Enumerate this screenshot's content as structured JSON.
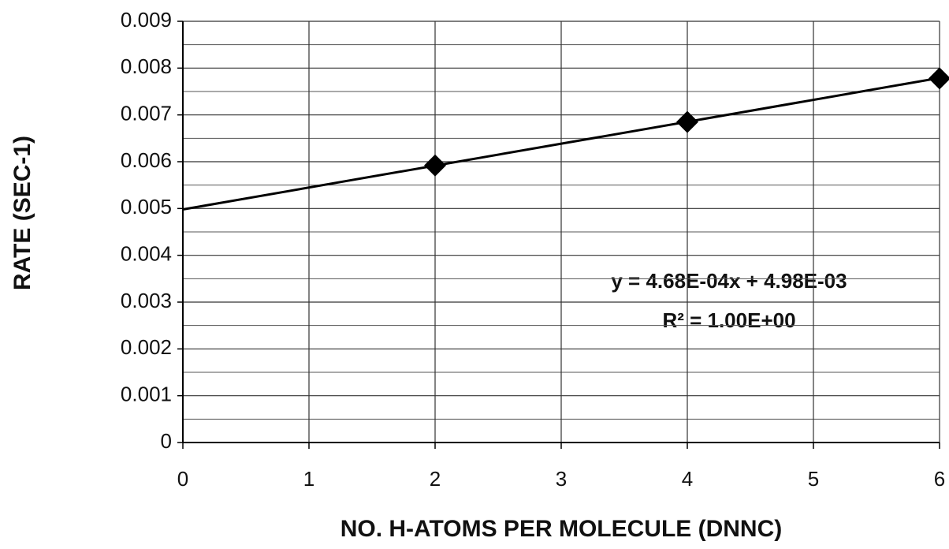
{
  "chart_data": {
    "type": "scatter",
    "xlabel": "NO. H-ATOMS PER MOLECULE (DNNC)",
    "ylabel": "RATE (SEC-1)",
    "annotations": [
      "y = 4.68E-04x + 4.98E-03",
      "R² = 1.00E+00"
    ],
    "x": [
      2,
      4,
      6
    ],
    "series": [
      {
        "color": "#000000",
        "values": [
          0.00592,
          0.00685,
          0.00778
        ]
      }
    ],
    "trendline": {
      "x": [
        0,
        6
      ],
      "values": [
        0.00498,
        0.00779
      ],
      "color": "#000000"
    },
    "xlim": [
      0,
      6
    ],
    "xticks": [
      0,
      1,
      2,
      3,
      4,
      5,
      6
    ],
    "ylim": [
      0,
      0.009
    ],
    "yticks": [
      0,
      0.001,
      0.002,
      0.003,
      0.004,
      0.005,
      0.006,
      0.007,
      0.008,
      0.009
    ],
    "yminorticks": [
      0.0005,
      0.0015,
      0.0025,
      0.0035,
      0.0045,
      0.0055,
      0.0065,
      0.0075,
      0.0085
    ],
    "grid": true
  }
}
